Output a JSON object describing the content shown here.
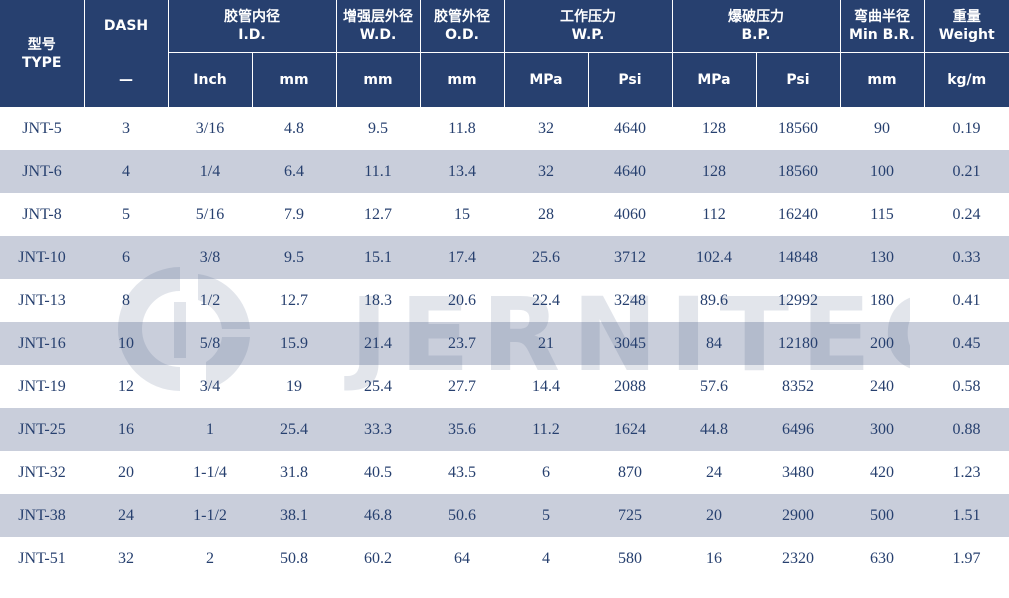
{
  "header": {
    "type": {
      "cn": "型号",
      "en": "TYPE"
    },
    "dash": {
      "label": "DASH",
      "unit": "—"
    },
    "id": {
      "cn": "胶管内径",
      "en": "I.D.",
      "unit_inch": "Inch",
      "unit_mm": "mm"
    },
    "wd": {
      "cn": "增强层外径",
      "en": "W.D.",
      "unit": "mm"
    },
    "od": {
      "cn": "胶管外径",
      "en": "O.D.",
      "unit": "mm"
    },
    "wp": {
      "cn": "工作压力",
      "en": "W.P.",
      "unit_mpa": "MPa",
      "unit_psi": "Psi"
    },
    "bp": {
      "cn": "爆破压力",
      "en": "B.P.",
      "unit_mpa": "MPa",
      "unit_psi": "Psi"
    },
    "br": {
      "cn": "弯曲半径",
      "en": "Min B.R.",
      "unit": "mm"
    },
    "weight": {
      "cn": "重量",
      "en": "Weight",
      "unit": "kg/m"
    }
  },
  "rows": [
    [
      "JNT-5",
      "3",
      "3/16",
      "4.8",
      "9.5",
      "11.8",
      "32",
      "4640",
      "128",
      "18560",
      "90",
      "0.19"
    ],
    [
      "JNT-6",
      "4",
      "1/4",
      "6.4",
      "11.1",
      "13.4",
      "32",
      "4640",
      "128",
      "18560",
      "100",
      "0.21"
    ],
    [
      "JNT-8",
      "5",
      "5/16",
      "7.9",
      "12.7",
      "15",
      "28",
      "4060",
      "112",
      "16240",
      "115",
      "0.24"
    ],
    [
      "JNT-10",
      "6",
      "3/8",
      "9.5",
      "15.1",
      "17.4",
      "25.6",
      "3712",
      "102.4",
      "14848",
      "130",
      "0.33"
    ],
    [
      "JNT-13",
      "8",
      "1/2",
      "12.7",
      "18.3",
      "20.6",
      "22.4",
      "3248",
      "89.6",
      "12992",
      "180",
      "0.41"
    ],
    [
      "JNT-16",
      "10",
      "5/8",
      "15.9",
      "21.4",
      "23.7",
      "21",
      "3045",
      "84",
      "12180",
      "200",
      "0.45"
    ],
    [
      "JNT-19",
      "12",
      "3/4",
      "19",
      "25.4",
      "27.7",
      "14.4",
      "2088",
      "57.6",
      "8352",
      "240",
      "0.58"
    ],
    [
      "JNT-25",
      "16",
      "1",
      "25.4",
      "33.3",
      "35.6",
      "11.2",
      "1624",
      "44.8",
      "6496",
      "300",
      "0.88"
    ],
    [
      "JNT-32",
      "20",
      "1-1/4",
      "31.8",
      "40.5",
      "43.5",
      "6",
      "870",
      "24",
      "3480",
      "420",
      "1.23"
    ],
    [
      "JNT-38",
      "24",
      "1-1/2",
      "38.1",
      "46.8",
      "50.6",
      "5",
      "725",
      "20",
      "2900",
      "500",
      "1.51"
    ],
    [
      "JNT-51",
      "32",
      "2",
      "50.8",
      "60.2",
      "64",
      "4",
      "580",
      "16",
      "2320",
      "630",
      "1.97"
    ]
  ],
  "watermark": {
    "text": "JERNITECH",
    "color": "#27406f"
  },
  "colors": {
    "header_bg": "#27406f",
    "stripe_bg": "#c9cedb",
    "text": "#27406f"
  }
}
